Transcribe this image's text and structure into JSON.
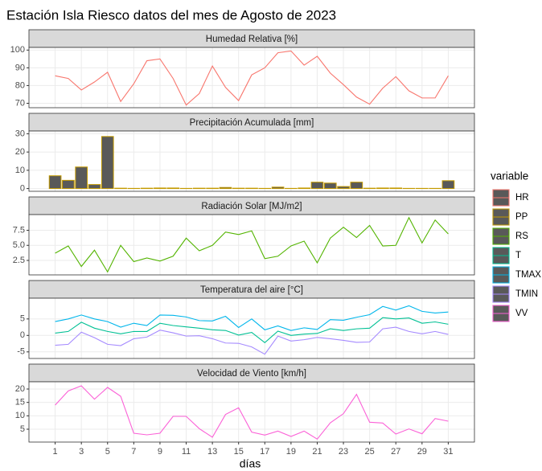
{
  "title": "Estación Isla Riesco datos del mes de Agosto de 2023",
  "xlabel": "días",
  "legend_title": "variable",
  "chart_data": [
    {
      "type": "line",
      "title": "Humedad Relativa [%]",
      "x": [
        1,
        2,
        3,
        4,
        5,
        6,
        7,
        8,
        9,
        10,
        11,
        12,
        13,
        14,
        15,
        16,
        17,
        18,
        19,
        20,
        21,
        22,
        23,
        24,
        25,
        26,
        27,
        28,
        29,
        30,
        31
      ],
      "series": [
        {
          "name": "HR",
          "color": "#F8766D",
          "values": [
            85.5,
            84,
            77.5,
            82,
            87.5,
            71,
            81,
            94,
            95,
            84,
            69,
            75.5,
            91,
            79,
            71.5,
            86,
            90,
            98.5,
            99.5,
            91.5,
            96.5,
            87,
            80.5,
            73.5,
            69.5,
            78.5,
            85,
            77,
            73,
            73,
            85.5
          ]
        }
      ],
      "xlim": [
        -1,
        33
      ],
      "xticks": [
        1,
        3,
        5,
        7,
        9,
        11,
        13,
        15,
        17,
        19,
        21,
        23,
        25,
        27,
        29,
        31
      ],
      "ylim": [
        67.5,
        101.5
      ],
      "yticks": [
        70,
        80,
        90,
        100
      ]
    },
    {
      "type": "bar",
      "title": "Precipitación Acumulada [mm]",
      "x": [
        1,
        2,
        3,
        4,
        5,
        6,
        7,
        8,
        9,
        10,
        11,
        12,
        13,
        14,
        15,
        16,
        17,
        18,
        19,
        20,
        21,
        22,
        23,
        24,
        25,
        26,
        27,
        28,
        29,
        30,
        31
      ],
      "series": [
        {
          "name": "PP",
          "color": "#C49A00",
          "values": [
            7,
            4.5,
            11.8,
            2.2,
            28.5,
            0.2,
            0.1,
            0.2,
            0.3,
            0.3,
            0.1,
            0.2,
            0.2,
            0.6,
            0.2,
            0.2,
            0.1,
            0.8,
            0.1,
            0.3,
            3.5,
            3,
            1.1,
            3.5,
            0.2,
            0.3,
            0.3,
            0.1,
            0.1,
            0.1,
            4.3
          ]
        }
      ],
      "xlim": [
        -1,
        33
      ],
      "xticks": [
        1,
        3,
        5,
        7,
        9,
        11,
        13,
        15,
        17,
        19,
        21,
        23,
        25,
        27,
        29,
        31
      ],
      "ylim": [
        -1.5,
        31.5
      ],
      "yticks": [
        0,
        10,
        20,
        30
      ]
    },
    {
      "type": "line",
      "title": "Radiación Solar [MJ/m2]",
      "x": [
        1,
        2,
        3,
        4,
        5,
        6,
        7,
        8,
        9,
        10,
        11,
        12,
        13,
        14,
        15,
        16,
        17,
        18,
        19,
        20,
        21,
        22,
        23,
        24,
        25,
        26,
        27,
        28,
        29,
        30,
        31
      ],
      "series": [
        {
          "name": "RS",
          "color": "#53B400",
          "values": [
            3.7,
            4.9,
            1.5,
            4.2,
            0.6,
            5.0,
            2.3,
            2.9,
            2.4,
            3.2,
            6.2,
            4.1,
            5.0,
            7.2,
            6.8,
            7.4,
            2.8,
            3.2,
            4.9,
            5.7,
            2.1,
            6.2,
            8.0,
            6.3,
            8.3,
            4.9,
            5.0,
            9.6,
            5.4,
            9.2,
            6.9
          ]
        }
      ],
      "xlim": [
        -1,
        33
      ],
      "xticks": [
        1,
        3,
        5,
        7,
        9,
        11,
        13,
        15,
        17,
        19,
        21,
        23,
        25,
        27,
        29,
        31
      ],
      "ylim": [
        0.1,
        10.1
      ],
      "yticks": [
        2.5,
        {
          "value": 5,
          "label": "5.0"
        },
        7.5
      ]
    },
    {
      "type": "line",
      "title": "Temperatura del aire [°C]",
      "x": [
        1,
        2,
        3,
        4,
        5,
        6,
        7,
        8,
        9,
        10,
        11,
        12,
        13,
        14,
        15,
        16,
        17,
        18,
        19,
        20,
        21,
        22,
        23,
        24,
        25,
        26,
        27,
        28,
        29,
        30,
        31
      ],
      "series": [
        {
          "name": "T",
          "color": "#00C094",
          "values": [
            0.7,
            1.2,
            4.0,
            2.2,
            1.2,
            0.5,
            1.2,
            1.2,
            3.7,
            3.0,
            2.6,
            2.2,
            1.7,
            1.5,
            0.1,
            0.9,
            -2.2,
            1.3,
            0,
            0.4,
            0.6,
            2.0,
            1.5,
            2.0,
            2.2,
            5.4,
            5.0,
            5.3,
            3.7,
            4.1,
            3.4
          ]
        },
        {
          "name": "TMAX",
          "color": "#00B6EB",
          "values": [
            4.2,
            5,
            6.2,
            5,
            4.2,
            2.5,
            3.7,
            3,
            6.2,
            6.1,
            5.6,
            4.5,
            4.4,
            5.8,
            2.4,
            5.0,
            1.7,
            2.9,
            1.5,
            2.3,
            1.8,
            4.8,
            4.6,
            5.5,
            6.3,
            8.8,
            7.7,
            9.0,
            7.3,
            6.8,
            7.1
          ]
        },
        {
          "name": "TMIN",
          "color": "#A58AFF",
          "values": [
            -3,
            -2.7,
            1.0,
            -0.7,
            -2.7,
            -3.1,
            -1.0,
            -0.5,
            1.6,
            0.8,
            -0.2,
            -0.1,
            -1.0,
            -2.3,
            -2.4,
            -3.5,
            -5.7,
            -0.2,
            -1.7,
            -1.3,
            -0.6,
            -1.0,
            -1.5,
            -2.1,
            -2.0,
            2.0,
            2.5,
            1.2,
            0.5,
            1.2,
            0.3
          ]
        }
      ],
      "xlim": [
        -1,
        33
      ],
      "xticks": [
        1,
        3,
        5,
        7,
        9,
        11,
        13,
        15,
        17,
        19,
        21,
        23,
        25,
        27,
        29,
        31
      ],
      "ylim": [
        -7,
        11.3
      ],
      "yticks": [
        -5,
        0,
        5
      ]
    },
    {
      "type": "line",
      "title": "Velocidad de Viento [km/h]",
      "x": [
        1,
        2,
        3,
        4,
        5,
        6,
        7,
        8,
        9,
        10,
        11,
        12,
        13,
        14,
        15,
        16,
        17,
        18,
        19,
        20,
        21,
        22,
        23,
        24,
        25,
        26,
        27,
        28,
        29,
        30,
        31
      ],
      "series": [
        {
          "name": "VV",
          "color": "#FB61D7",
          "values": [
            14,
            19.3,
            21.2,
            16.2,
            20.6,
            17.3,
            3.5,
            2.9,
            3.5,
            9.8,
            9.8,
            5.2,
            2.0,
            10.5,
            13,
            3.9,
            2.8,
            4.3,
            2.3,
            4.3,
            1.3,
            7.4,
            10.8,
            18,
            7.6,
            7.3,
            3.2,
            5.1,
            3.3,
            9.0,
            8.0
          ]
        }
      ],
      "xlim": [
        -1,
        33
      ],
      "xticks": [
        1,
        3,
        5,
        7,
        9,
        11,
        13,
        15,
        17,
        19,
        21,
        23,
        25,
        27,
        29,
        31
      ],
      "ylim": [
        0.2,
        22.7
      ],
      "yticks": [
        5,
        10,
        15,
        20
      ]
    }
  ]
}
